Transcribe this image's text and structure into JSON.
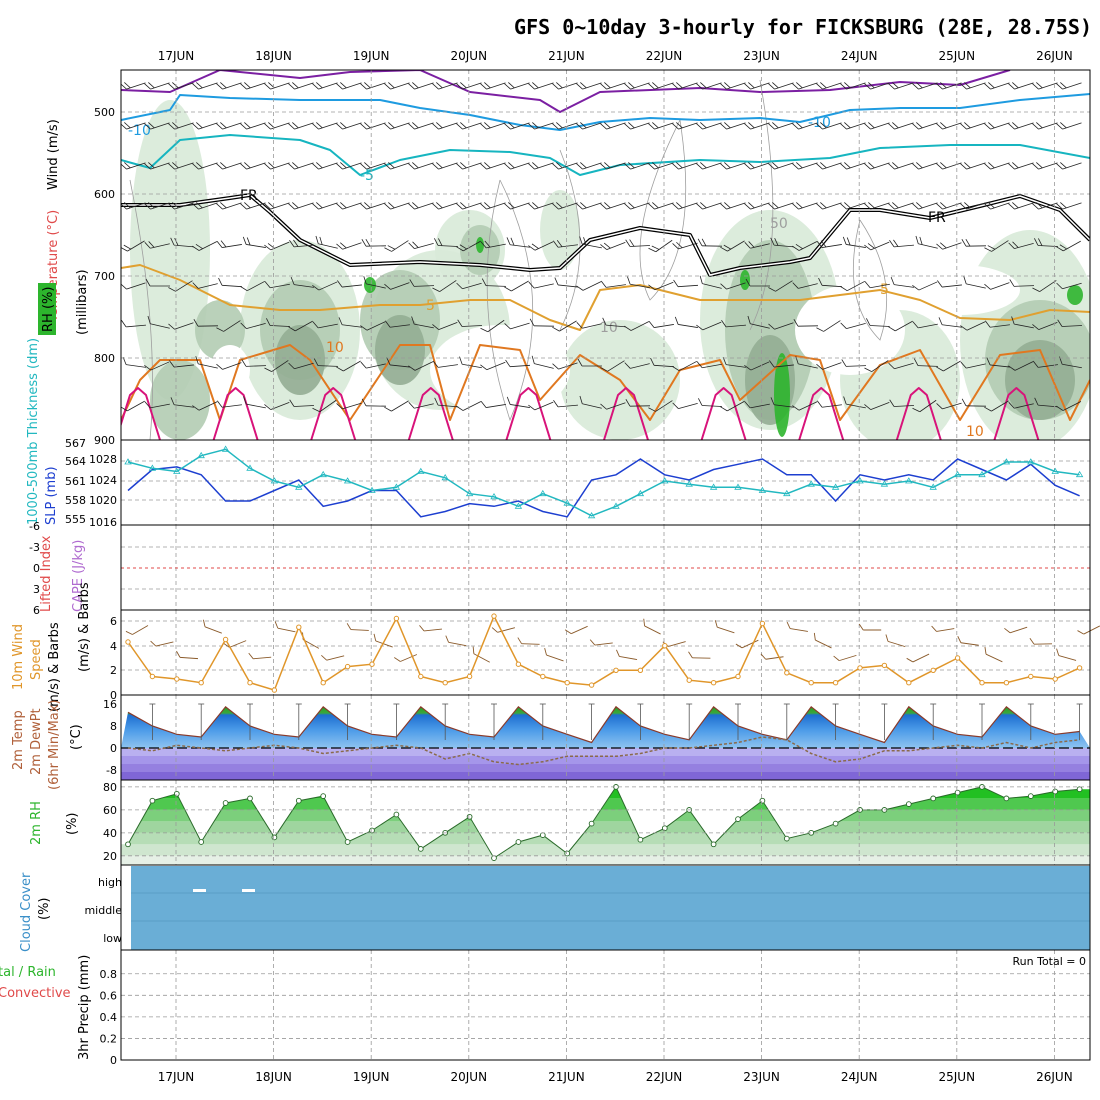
{
  "title": "GFS 0~10day 3-hourly for FICKSBURG (28E, 28.75S)",
  "dates": [
    "17JUN",
    "18JUN",
    "19JUN",
    "20JUN",
    "21JUN",
    "22JUN",
    "23JUN",
    "24JUN",
    "25JUN",
    "26JUN"
  ],
  "run_total": "Run Total = 0",
  "colors": {
    "purple": "#7b1fa2",
    "blue": "#1e9be0",
    "cyan": "#16b5c0",
    "gold": "#e0a030",
    "orange": "#e07820",
    "magenta": "#d8137a",
    "green_shade": "#2db52d",
    "slp": "#1d3fd0",
    "thick": "#22b8c0",
    "wind": "#e0962a",
    "cloud": "#6aaed6"
  },
  "panels": {
    "upper_air": {
      "ylabel_wind": "Wind (m/s)",
      "ylabel_temp": "Temperature (°C)",
      "ylabel_rh": "RH (%)",
      "ylabel_mb": "(millibars)",
      "ticks": [
        "500",
        "600",
        "700",
        "800",
        "900"
      ],
      "contour_labels": [
        "-10",
        "-10",
        "-5",
        "FR",
        "FR",
        "5",
        "5",
        "10",
        "10",
        "50",
        "10"
      ]
    },
    "pressure": {
      "ylabel_thick": "1000-500mb Thickness (dm)",
      "ylabel_slp": "SLP (mb)",
      "thick_ticks": [
        "567",
        "564",
        "561",
        "558",
        "555"
      ],
      "slp_ticks": [
        "1028",
        "1024",
        "1020",
        "1016"
      ]
    },
    "stability": {
      "ylabel_li": "Lifted Index",
      "ylabel_cape": "CAPE (J/kg)",
      "ticks": [
        "-6",
        "-3",
        "0",
        "3",
        "6"
      ]
    },
    "wind10m": {
      "ylabel_1": "10m Wind",
      "ylabel_2": "Speed",
      "ylabel_3": "(m/s) & Barbs",
      "ticks": [
        "6",
        "4",
        "2",
        "0"
      ]
    },
    "temp2m": {
      "ylabel_1": "2m Temp",
      "ylabel_2": "2m DewPt",
      "ylabel_3": "(6hr Min/Max)",
      "ylabel_4": "(°C)",
      "ticks": [
        "16",
        "8",
        "0",
        "-8"
      ]
    },
    "rh2m": {
      "ylabel_1": "2m RH",
      "ylabel_2": "(%)",
      "ticks": [
        "80",
        "60",
        "40",
        "20"
      ]
    },
    "cloud": {
      "ylabel_1": "Cloud Cover",
      "ylabel_2": "(%)",
      "levels": [
        "high",
        "middle",
        "low"
      ]
    },
    "precip": {
      "ylabel_1": "tal / Rain",
      "ylabel_2": "Convective",
      "ylabel_3": "3hr Precip (mm)",
      "ticks": [
        "0.8",
        "0.6",
        "0.4",
        "0.2",
        "0"
      ]
    }
  },
  "chart_data": [
    {
      "type": "line",
      "name": "SLP",
      "ylabel": "SLP (mb)",
      "ylim": [
        1016,
        1030
      ],
      "x_hours": [
        0,
        6,
        12,
        18,
        24,
        30,
        36,
        42,
        48,
        54,
        60,
        66,
        72,
        78,
        84,
        90,
        96,
        102,
        108,
        114,
        120,
        126,
        132,
        138,
        144,
        150,
        156,
        162,
        168,
        174,
        180,
        186,
        192,
        198,
        204,
        210,
        216,
        222,
        228,
        234
      ],
      "values": [
        1022,
        1026,
        1026.5,
        1025,
        1020,
        1020,
        1022,
        1024,
        1019,
        1020,
        1022,
        1022,
        1017,
        1018,
        1019.5,
        1019,
        1020,
        1018,
        1017,
        1024,
        1025,
        1028,
        1025,
        1024,
        1026,
        1027,
        1028,
        1025,
        1025,
        1020,
        1025,
        1024,
        1025,
        1024,
        1028,
        1026,
        1024,
        1027,
        1023,
        1021
      ]
    },
    {
      "type": "line",
      "name": "1000-500mb Thickness",
      "ylabel": "1000-500mb Thickness (dm)",
      "ylim": [
        554,
        568
      ],
      "x_hours": [
        0,
        6,
        12,
        18,
        24,
        30,
        36,
        42,
        48,
        54,
        60,
        66,
        72,
        78,
        84,
        90,
        96,
        102,
        108,
        114,
        120,
        126,
        132,
        138,
        144,
        150,
        156,
        162,
        168,
        174,
        180,
        186,
        192,
        198,
        204,
        210,
        216,
        222,
        228,
        234
      ],
      "values": [
        564,
        563,
        562.5,
        565,
        566,
        563,
        561,
        560,
        562,
        561,
        559.5,
        560,
        562.5,
        561.5,
        559,
        558.5,
        557,
        559,
        557.5,
        555.5,
        557,
        559,
        561,
        560.5,
        560,
        560,
        559.5,
        559,
        560.5,
        560,
        561,
        560.5,
        561,
        560,
        562,
        562,
        564,
        564,
        562.5,
        562
      ]
    },
    {
      "type": "line",
      "name": "10m Wind Speed",
      "ylabel": "(m/s)",
      "ylim": [
        0,
        6.8
      ],
      "x_hours": [
        0,
        6,
        12,
        18,
        24,
        30,
        36,
        42,
        48,
        54,
        60,
        66,
        72,
        78,
        84,
        90,
        96,
        102,
        108,
        114,
        120,
        126,
        132,
        138,
        144,
        150,
        156,
        162,
        168,
        174,
        180,
        186,
        192,
        198,
        204,
        210,
        216,
        222,
        228,
        234
      ],
      "values": [
        4.3,
        1.5,
        1.3,
        1.0,
        4.5,
        1.0,
        0.4,
        5.5,
        1.0,
        2.3,
        2.5,
        6.2,
        1.5,
        1.0,
        1.5,
        6.4,
        2.5,
        1.5,
        1.0,
        0.8,
        2.0,
        2.0,
        4.0,
        1.2,
        1.0,
        1.5,
        5.8,
        1.8,
        1.0,
        1.0,
        2.2,
        2.4,
        1.0,
        2.0,
        3.0,
        1.0,
        1.0,
        1.5,
        1.3,
        2.2
      ]
    },
    {
      "type": "area",
      "name": "2m Temp",
      "ylabel": "(°C)",
      "ylim": [
        -12,
        17
      ],
      "x_hours": [
        0,
        6,
        12,
        18,
        24,
        30,
        36,
        42,
        48,
        54,
        60,
        66,
        72,
        78,
        84,
        90,
        96,
        102,
        108,
        114,
        120,
        126,
        132,
        138,
        144,
        150,
        156,
        162,
        168,
        174,
        180,
        186,
        192,
        198,
        204,
        210,
        216,
        222,
        228,
        234
      ],
      "values": [
        13,
        8,
        5,
        4,
        15,
        8,
        5,
        4,
        15,
        8,
        5,
        4,
        15,
        8,
        5,
        4,
        15,
        8,
        5,
        2,
        15,
        8,
        5,
        3,
        15,
        8,
        5,
        3,
        15,
        8,
        5,
        2,
        15,
        8,
        5,
        4,
        15,
        8,
        5,
        6
      ]
    },
    {
      "type": "area",
      "name": "2m RH",
      "ylabel": "(%)",
      "ylim": [
        12,
        86
      ],
      "x_hours": [
        0,
        6,
        12,
        18,
        24,
        30,
        36,
        42,
        48,
        54,
        60,
        66,
        72,
        78,
        84,
        90,
        96,
        102,
        108,
        114,
        120,
        126,
        132,
        138,
        144,
        150,
        156,
        162,
        168,
        174,
        180,
        186,
        192,
        198,
        204,
        210,
        216,
        222,
        228,
        234
      ],
      "values": [
        30,
        68,
        74,
        32,
        66,
        70,
        36,
        68,
        72,
        32,
        42,
        56,
        26,
        40,
        54,
        18,
        32,
        38,
        22,
        48,
        80,
        34,
        44,
        60,
        30,
        52,
        68,
        35,
        40,
        48,
        60,
        60,
        65,
        70,
        75,
        80,
        70,
        72,
        76,
        78
      ]
    }
  ]
}
